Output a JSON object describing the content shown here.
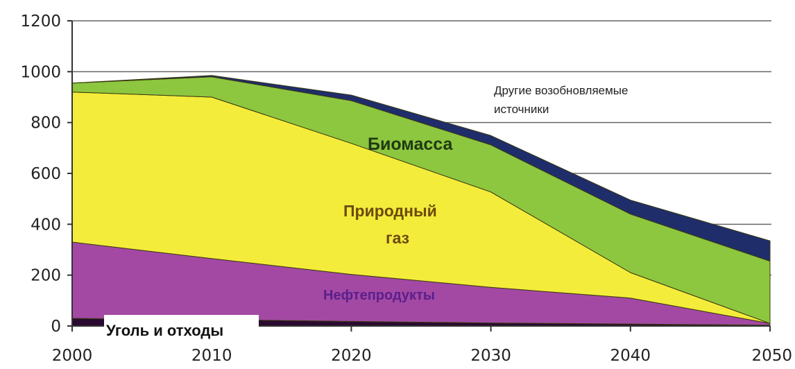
{
  "chart_data": {
    "type": "area",
    "title": "",
    "xlabel": "",
    "ylabel": "",
    "x": [
      2000,
      2010,
      2020,
      2030,
      2040,
      2050
    ],
    "xlim": [
      2000,
      2050
    ],
    "ylim": [
      0,
      1200
    ],
    "y_ticks": [
      0,
      200,
      400,
      600,
      800,
      1000,
      1200
    ],
    "x_ticks": [
      2000,
      2010,
      2020,
      2030,
      2040,
      2050
    ],
    "stacked": true,
    "grid": "horizontal",
    "series": [
      {
        "name": "Уголь и отходы",
        "color": "#2a0a30",
        "x": [
          2000,
          2010,
          2020,
          2030,
          2040,
          2050
        ],
        "values": [
          30,
          25,
          18,
          12,
          8,
          3
        ]
      },
      {
        "name": "Нефтепродукты",
        "color": "#a349a4",
        "x": [
          2000,
          2010,
          2020,
          2030,
          2040,
          2050
        ],
        "values": [
          300,
          240,
          185,
          140,
          102,
          7
        ]
      },
      {
        "name": "Природный газ",
        "color": "#f4ec3a",
        "x": [
          2000,
          2010,
          2020,
          2030,
          2040,
          2050
        ],
        "values": [
          590,
          635,
          515,
          375,
          100,
          0
        ]
      },
      {
        "name": "Биомасса",
        "color": "#8dc63f",
        "x": [
          2000,
          2010,
          2020,
          2030,
          2040,
          2050
        ],
        "values": [
          35,
          80,
          168,
          185,
          230,
          245
        ]
      },
      {
        "name": "Другие возобновляемые источники",
        "color": "#1f2d6b",
        "x": [
          2000,
          2010,
          2020,
          2030,
          2040,
          2050
        ],
        "values": [
          0,
          5,
          22,
          37,
          55,
          80
        ]
      }
    ],
    "labels": {
      "coal": "Уголь и отходы",
      "oil": "Нефтепродукты",
      "gas_line1": "Природный",
      "gas_line2": "газ",
      "biomass": "Биомасса",
      "other_line1": "Другие возобновляемые",
      "other_line2": "источники"
    }
  }
}
